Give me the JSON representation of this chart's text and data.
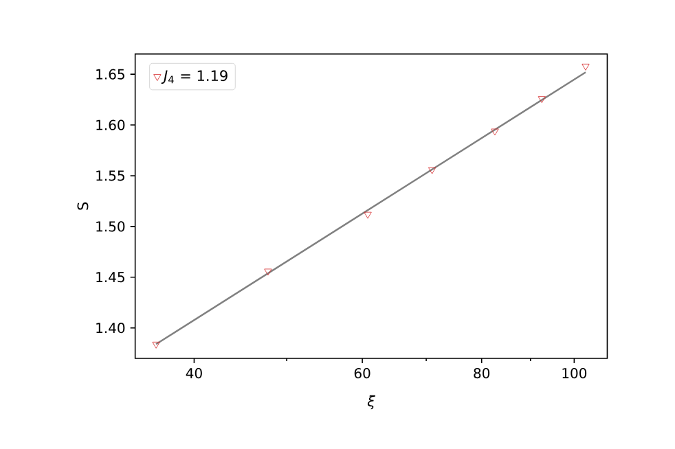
{
  "chart_data": {
    "type": "scatter",
    "xlabel": "ξ",
    "ylabel": "S",
    "log": "x",
    "legend": "top left",
    "marker": "triangle",
    "xlim": [
      34.7,
      108.3
    ],
    "ylim": [
      1.37,
      1.67
    ],
    "xticks": [
      40,
      {
        "value": 50,
        "label": null
      },
      60,
      {
        "value": 70,
        "label": null
      },
      80,
      {
        "value": 90,
        "label": null
      },
      100
    ],
    "yticks": [
      {
        "value": 1.4,
        "label": "1.40"
      },
      1.45,
      {
        "value": 1.5,
        "label": "1.50"
      },
      1.55,
      {
        "value": 1.6,
        "label": "1.60"
      },
      1.65
    ],
    "series": [
      {
        "name": "*J*$_{4}$ = 1.19",
        "color": "#d62728",
        "x": [
          36.5,
          47.8,
          60.8,
          71.0,
          82.6,
          92.5,
          102.8
        ],
        "values": [
          1.384,
          1.456,
          1.512,
          1.556,
          1.594,
          1.626,
          1.658
        ]
      },
      {
        "type": "line",
        "color": "#808080",
        "x": [
          36.5,
          102.8
        ],
        "values": [
          1.384,
          1.652
        ],
        "marker": "none"
      }
    ]
  }
}
